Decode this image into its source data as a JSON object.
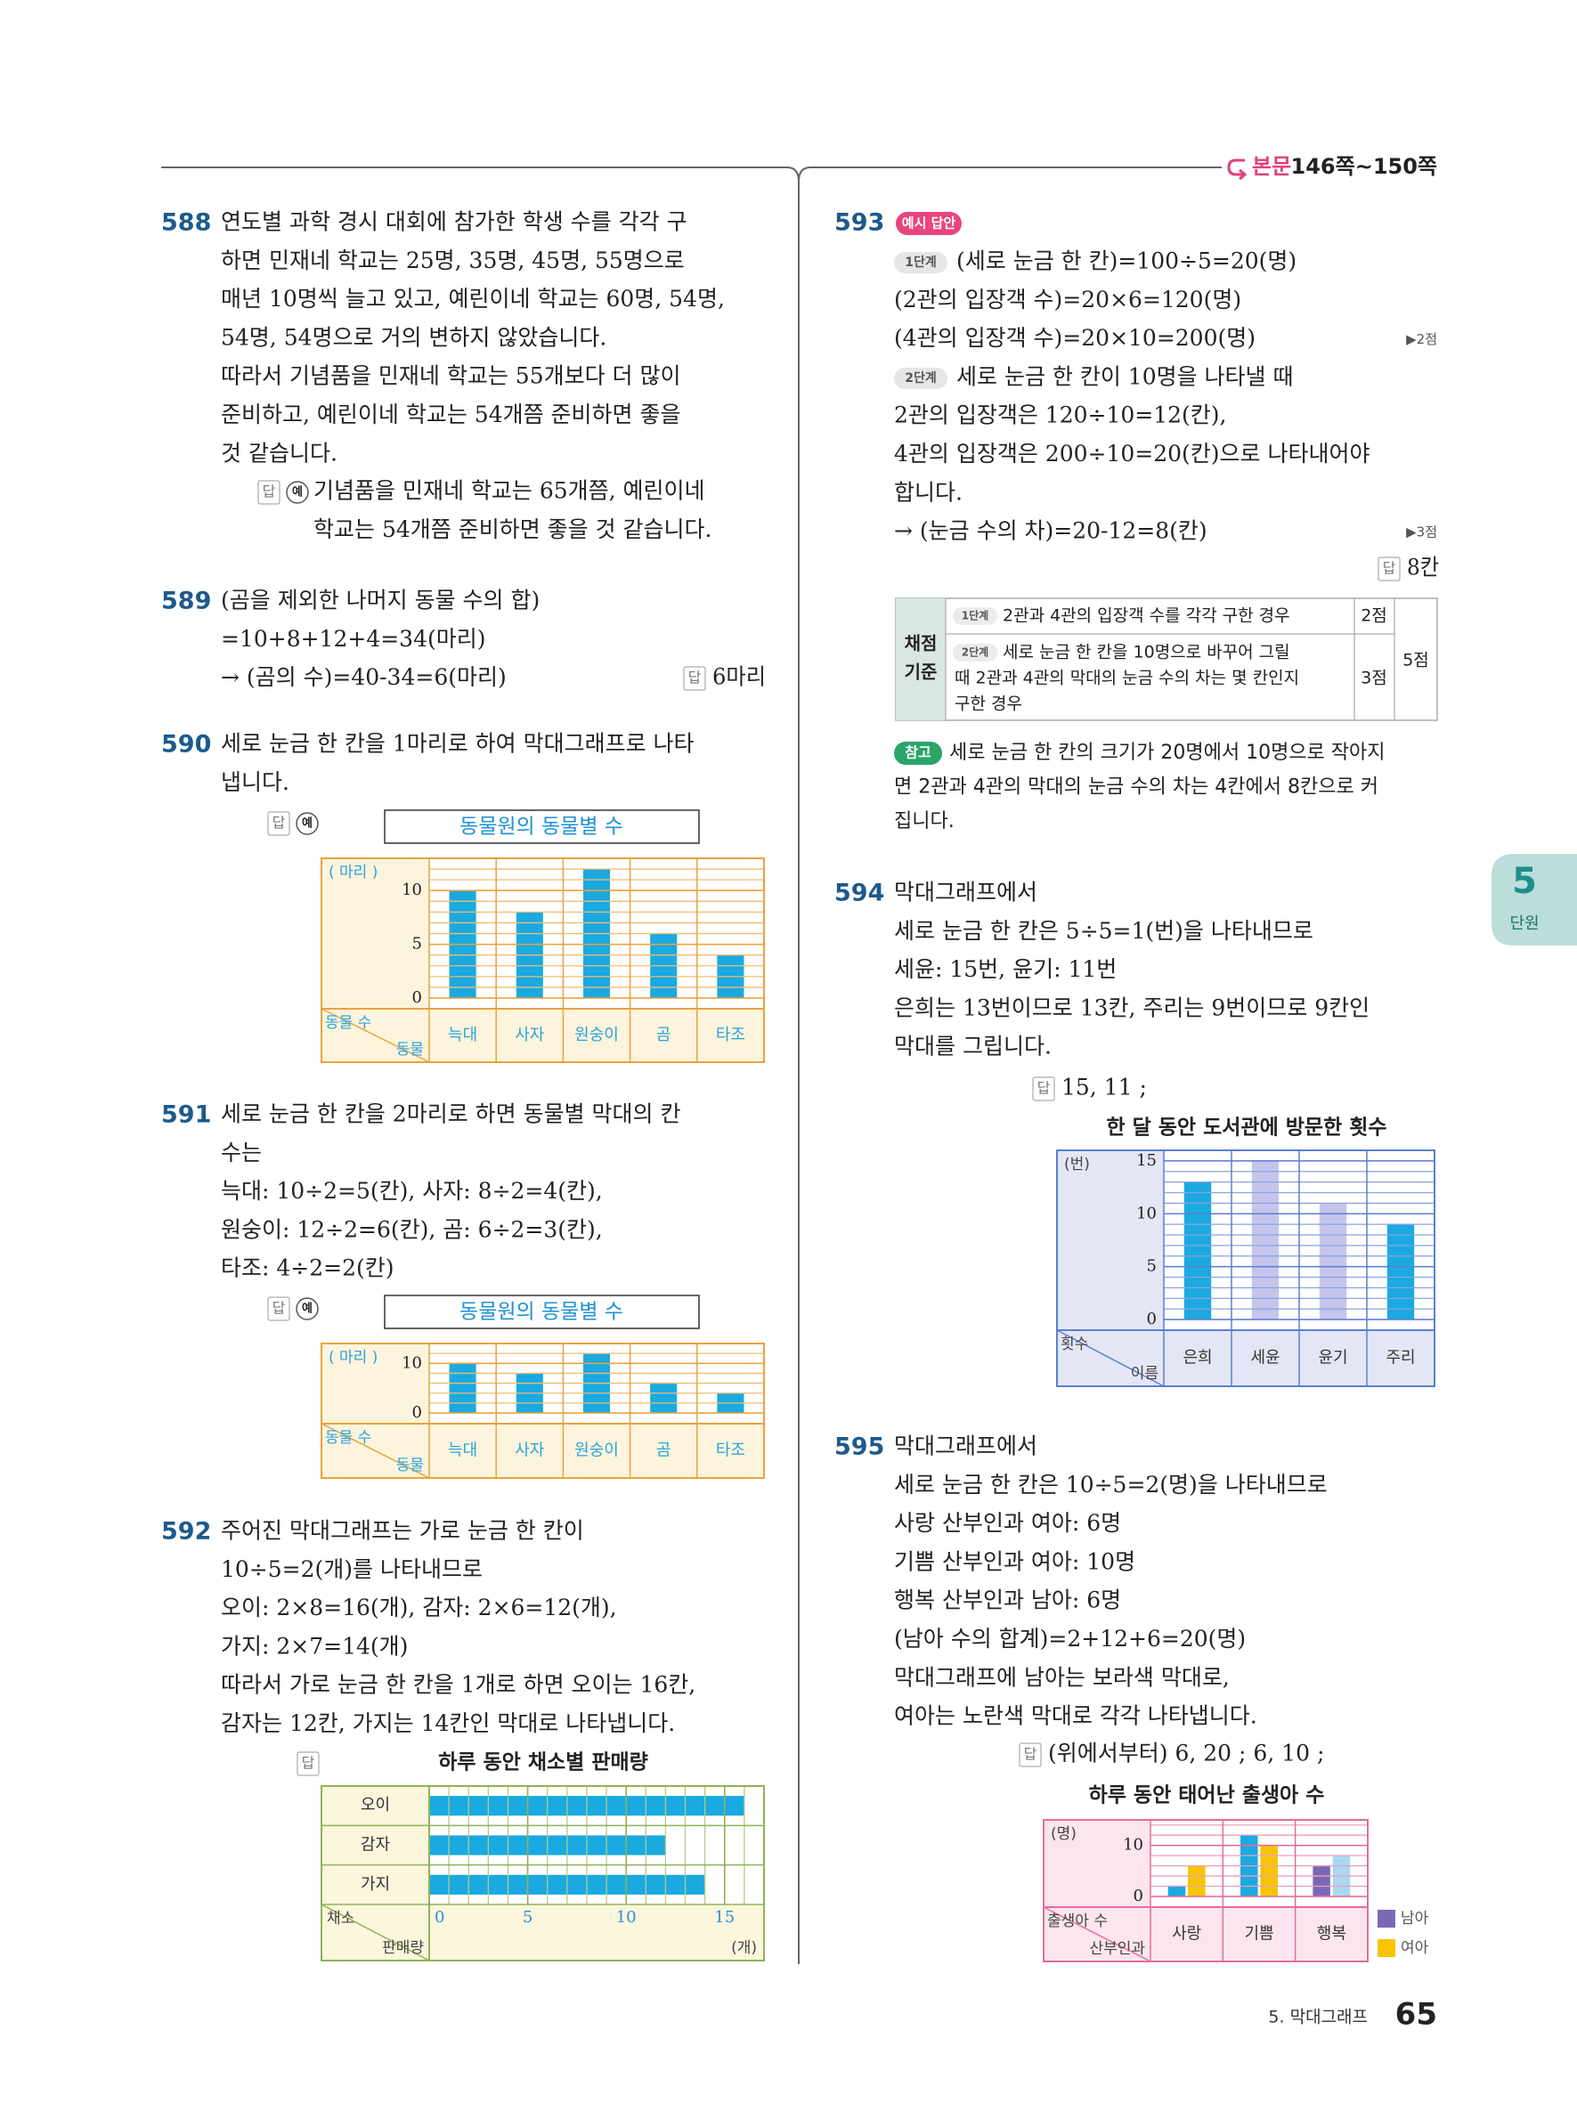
{
  "header": {
    "label": "본문",
    "pages": "146쪽~150쪽"
  },
  "side_tab": {
    "number": "5",
    "label": "단원"
  },
  "footer": {
    "chapter": "5. 막대그래프",
    "page": "65"
  },
  "problems": [
    {
      "number": "588",
      "lines": [
        "연도별 과학 경시 대회에 참가한 학생 수를 각각 구",
        "하면 민재네 학교는 25명, 35명, 45명, 55명으로",
        "매년 10명씩 늘고 있고, 예린이네 학교는 60명, 54명,",
        "54명, 54명으로 거의 변하지 않았습니다.",
        "따라서 기념품을 민재네 학교는 55개보다 더 많이",
        "준비하고, 예린이네 학교는 54개쯤 준비하면 좋을",
        "것 같습니다."
      ],
      "answer": {
        "label": "답",
        "example": "예",
        "lines": [
          "기념품을 민재네 학교는 65개쯤, 예린이네",
          "학교는 54개쯤 준비하면 좋을 것 같습니다."
        ]
      }
    },
    {
      "number": "589",
      "lines": [
        "(곰을 제외한 나머지 동물 수의 합)",
        "=10+8+12+4=34(마리)",
        "→ (곰의 수)=40-34=6(마리)"
      ],
      "answer": {
        "label": "답",
        "lines": [
          "6마리"
        ]
      }
    },
    {
      "number": "590",
      "lines": [
        "세로 눈금 한 칸을 1마리로 하여 막대그래프로 나타",
        "냅니다."
      ],
      "answer": {
        "label": "답",
        "example": "예"
      },
      "chart": {
        "type": "bar",
        "title": "동물원의 동물별 수",
        "unit": "( 마리 )",
        "value_label": "동물 수",
        "category_label": "동물",
        "categories": [
          "늑대",
          "사자",
          "원숭이",
          "곰",
          "타조"
        ],
        "values": [
          10,
          8,
          12,
          6,
          4
        ],
        "color": "#1aa9e1",
        "ylim": [
          0,
          13
        ],
        "yticks": [
          0,
          5,
          10
        ],
        "minor_step": 1
      }
    },
    {
      "number": "591",
      "lines": [
        "세로 눈금 한 칸을 2마리로 하면 동물별 막대의 칸",
        "수는",
        "늑대: 10÷2=5(칸), 사자: 8÷2=4(칸),",
        "원숭이: 12÷2=6(칸), 곰: 6÷2=3(칸),",
        "타조: 4÷2=2(칸)"
      ],
      "answer": {
        "label": "답",
        "example": "예"
      },
      "chart": {
        "type": "bar",
        "title": "동물원의 동물별 수",
        "unit": "( 마리 )",
        "value_label": "동물 수",
        "category_label": "동물",
        "categories": [
          "늑대",
          "사자",
          "원숭이",
          "곰",
          "타조"
        ],
        "values": [
          10,
          8,
          12,
          6,
          4
        ],
        "color": "#1aa9e1",
        "ylim": [
          0,
          14
        ],
        "yticks": [
          0,
          10
        ],
        "minor_step": 2
      }
    },
    {
      "number": "592",
      "lines": [
        "주어진 막대그래프는 가로 눈금 한 칸이",
        "10÷5=2(개)를 나타내므로",
        "오이: 2×8=16(개), 감자: 2×6=12(개),",
        "가지: 2×7=14(개)",
        "따라서 가로 눈금 한 칸을 1개로 하면 오이는 16칸,",
        "감자는 12칸, 가지는 14칸인 막대로 나타냅니다."
      ],
      "answer": {
        "label": "답"
      },
      "chart": {
        "type": "hbar",
        "title": "하루 동안 채소별 판매량",
        "unit": "(개)",
        "category_label": "채소",
        "value_label": "판매량",
        "categories": [
          "오이",
          "감자",
          "가지"
        ],
        "values": [
          16,
          12,
          14
        ],
        "color": "#1aa9e1",
        "xlim": [
          0,
          17
        ],
        "xticks": [
          0,
          5,
          10,
          15
        ],
        "minor_step": 1
      }
    },
    {
      "number": "593",
      "badge": "예시 답안",
      "lines": [
        {
          "step": "1단계",
          "text": "(세로 눈금 한 칸)=100÷5=20(명)"
        },
        {
          "text": "(2관의 입장객 수)=20×6=120(명)"
        },
        {
          "text": "(4관의 입장객 수)=20×10=200(명)",
          "score": "▶2점"
        },
        {
          "step": "2단계",
          "text": "세로 눈금 한 칸이 10명을 나타낼 때"
        },
        {
          "text": "2관의 입장객은 120÷10=12(칸),"
        },
        {
          "text": "4관의 입장객은 200÷10=20(칸)으로 나타내어야"
        },
        {
          "text": "합니다."
        },
        {
          "text": "→ (눈금 수의 차)=20-12=8(칸)",
          "score": "▶3점"
        }
      ],
      "answer": {
        "label": "답",
        "lines": [
          "8칸"
        ]
      },
      "table": {
        "header": [
          "채점",
          "기준"
        ],
        "rows": [
          {
            "step": "1단계",
            "lines": [
              "2관과 4관의 입장객 수를 각각 구한 경우"
            ],
            "score": "2점"
          },
          {
            "step": "2단계",
            "lines": [
              "세로 눈금 한 칸을 10명으로 바꾸어 그릴",
              "때 2관과 4관의 막대의 눈금 수의 차는 몇 칸인지",
              "구한 경우"
            ],
            "score": "3점"
          }
        ],
        "total": "5점"
      },
      "note": {
        "label": "참고",
        "lines": [
          "세로 눈금 한 칸의 크기가 20명에서 10명으로 작아지",
          "면 2관과 4관의 막대의 눈금 수의 차는 4칸에서 8칸으로 커",
          "집니다."
        ]
      }
    },
    {
      "number": "594",
      "lines": [
        "막대그래프에서",
        "세로 눈금 한 칸은 5÷5=1(번)을 나타내므로",
        "세윤: 15번, 윤기: 11번",
        "은희는 13번이므로 13칸, 주리는 9번이므로 9칸인",
        "막대를 그립니다."
      ],
      "answer": {
        "label": "답",
        "lines": [
          "15, 11 ;"
        ]
      },
      "chart": {
        "type": "bar",
        "title": "한 달 동안 도서관에 방문한 횟수",
        "unit": "(번)",
        "value_label": "횟수",
        "category_label": "이름",
        "categories": [
          "은희",
          "세윤",
          "윤기",
          "주리"
        ],
        "values": [
          13,
          15,
          11,
          9
        ],
        "colors": [
          "#1aa9e1",
          "#c5c5ec",
          "#c5c5ec",
          "#1aa9e1"
        ],
        "ylim": [
          0,
          16
        ],
        "yticks": [
          0,
          5,
          10,
          15
        ],
        "minor_step": 1
      }
    },
    {
      "number": "595",
      "lines": [
        "막대그래프에서",
        "세로 눈금 한 칸은 10÷5=2(명)을 나타내므로",
        "사랑 산부인과 여아: 6명",
        "기쁨 산부인과 여아: 10명",
        "행복 산부인과 남아: 6명",
        "(남아 수의 합계)=2+12+6=20(명)",
        "막대그래프에 남아는 보라색 막대로,",
        "여아는 노란색 막대로 각각 나타냅니다."
      ],
      "answer": {
        "label": "답",
        "lines": [
          "(위에서부터) 6, 20 ; 6, 10 ;"
        ]
      },
      "chart": {
        "type": "grouped_bar",
        "title": "하루 동안 태어난 출생아 수",
        "unit": "(명)",
        "value_label": "출생아 수",
        "category_label": "산부인과",
        "categories": [
          "사랑",
          "기쁨",
          "행복"
        ],
        "series": [
          {
            "name": "남아",
            "color": "#7b68b5",
            "bar_colors": [
              "#1aa9e1",
              "#1aa9e1",
              "#7b68b5"
            ],
            "values": [
              2,
              12,
              6
            ]
          },
          {
            "name": "여아",
            "color": "#f7c600",
            "bar_colors": [
              "#f7c600",
              "#f7c600",
              "#a9d9f2"
            ],
            "values": [
              6,
              10,
              8
            ]
          }
        ],
        "ylim": [
          0,
          15
        ],
        "yticks": [
          0,
          10
        ],
        "minor_step": 2
      }
    }
  ]
}
